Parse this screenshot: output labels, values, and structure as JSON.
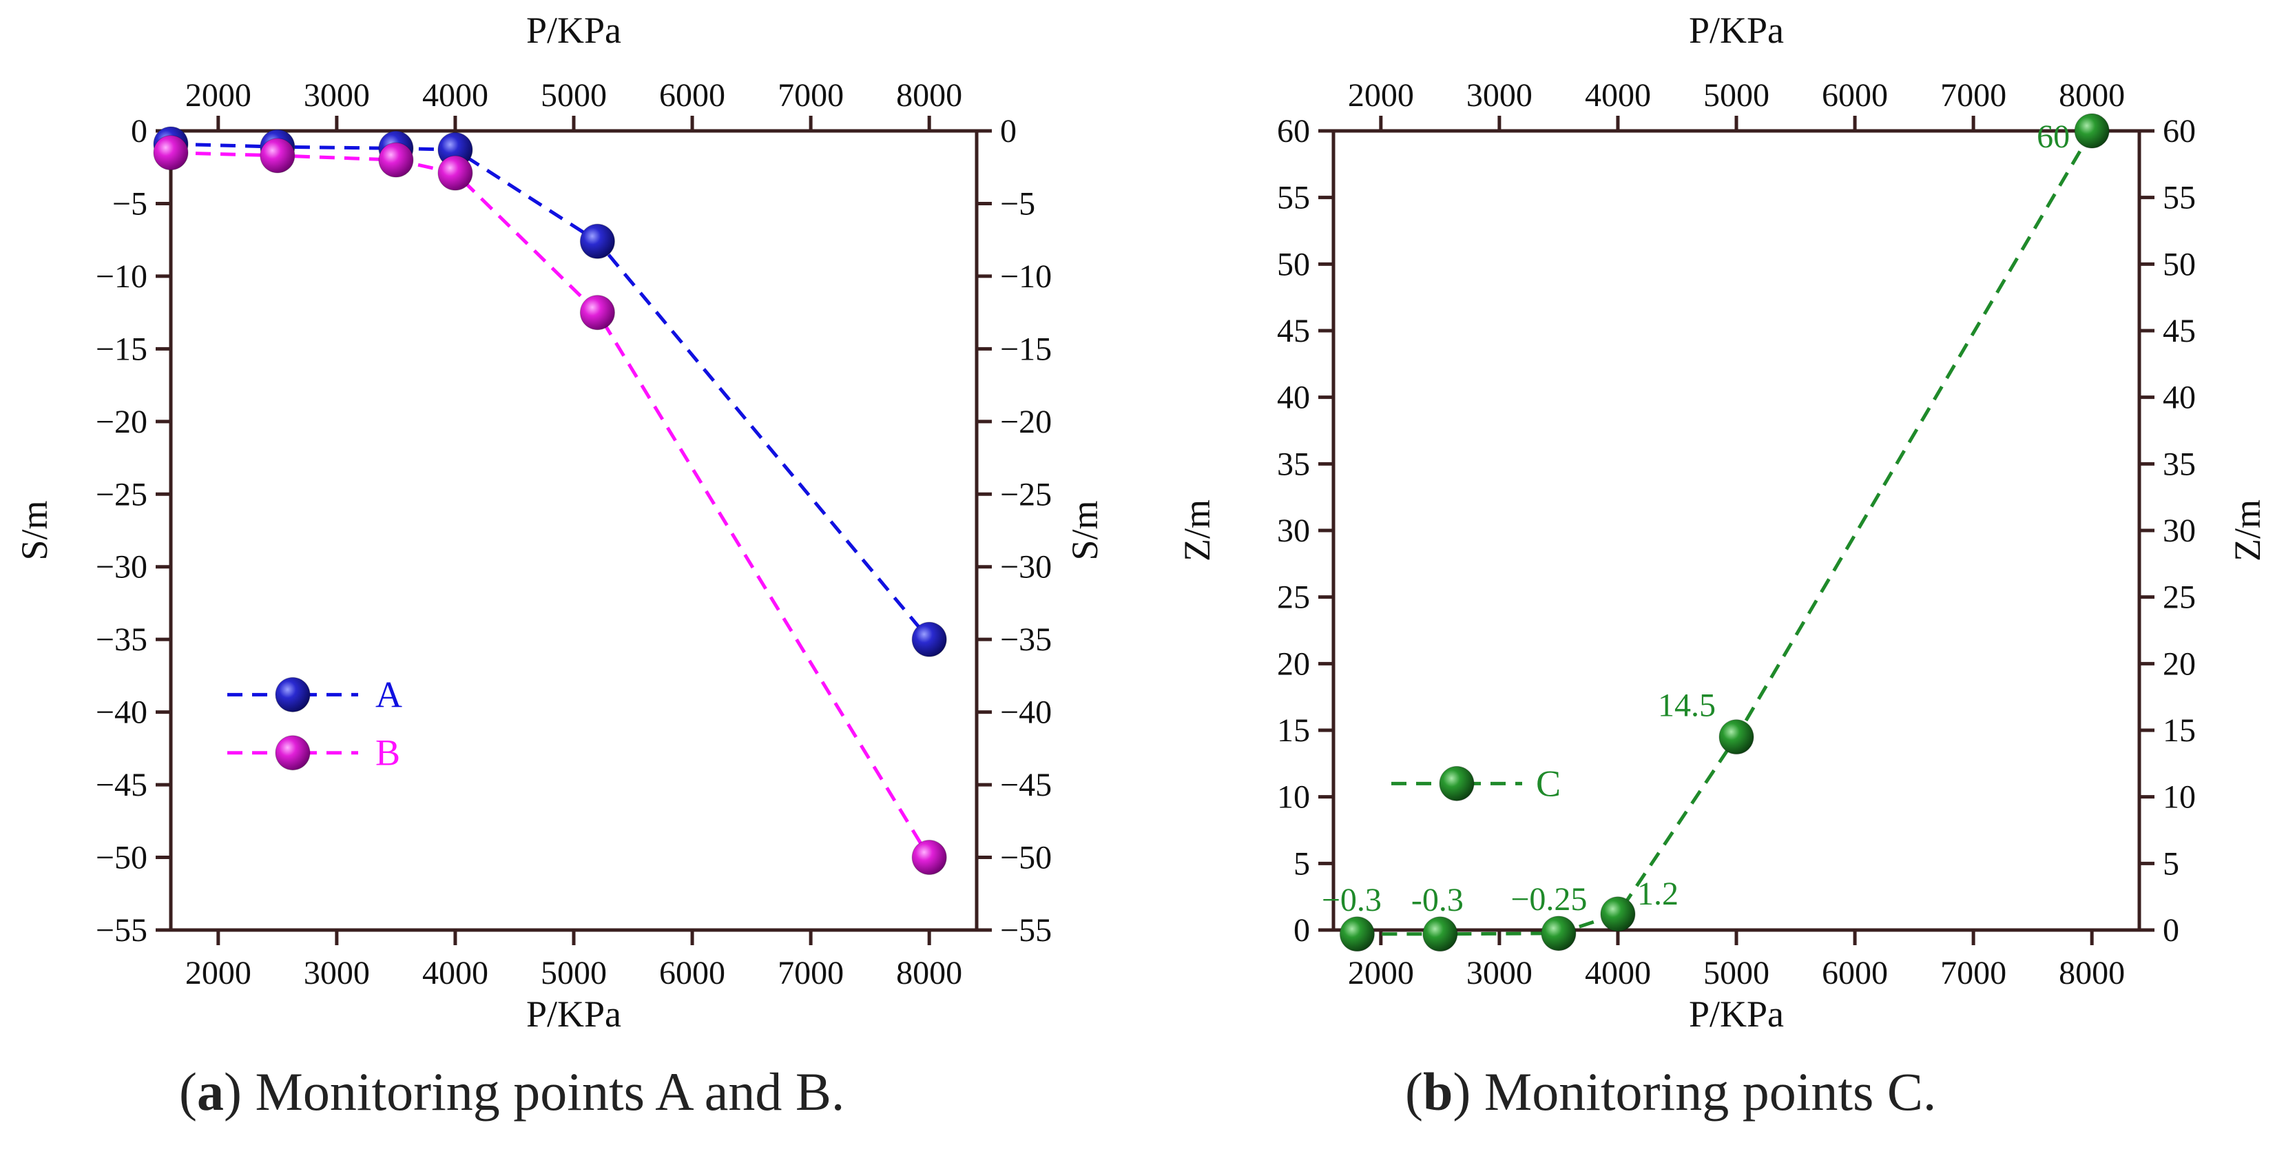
{
  "colors": {
    "axis": "#3a1f1f",
    "series_A": "#1010e0",
    "series_A_marker": "#1818b8",
    "series_B": "#ff10ff",
    "series_B_marker": "#e010d0",
    "series_C": "#1f8a2a",
    "series_C_marker": "#1f8a2a",
    "caption": "#222222"
  },
  "captions": {
    "a": {
      "open": "(",
      "letter": "a",
      "text": ") Monitoring points A and B."
    },
    "b": {
      "open": "(",
      "letter": "b",
      "text": ") Monitoring points C."
    }
  },
  "chart_data": [
    {
      "type": "line",
      "id": "a",
      "title": "",
      "xlabel": "P/KPa",
      "x2label": "P/KPa",
      "ylabel": "S/m",
      "y2label": "S/m",
      "xlim": [
        1600,
        8400
      ],
      "ylim": [
        -55,
        0
      ],
      "xticks": [
        2000,
        3000,
        4000,
        5000,
        6000,
        7000,
        8000
      ],
      "yticks": [
        0,
        -5,
        -10,
        -15,
        -20,
        -25,
        -30,
        -35,
        -40,
        -45,
        -50,
        -55
      ],
      "ytick_labels": [
        "0",
        "−5",
        "−10",
        "−15",
        "−20",
        "−25",
        "−30",
        "−35",
        "−40",
        "−45",
        "−50",
        "−55"
      ],
      "legend": {
        "position": "bottom-left",
        "entries": [
          "A",
          "B"
        ]
      },
      "series": [
        {
          "name": "A",
          "x": [
            1600,
            2500,
            3500,
            4000,
            5200,
            8000
          ],
          "y": [
            -0.9,
            -1.1,
            -1.2,
            -1.3,
            -7.6,
            -35
          ]
        },
        {
          "name": "B",
          "x": [
            1600,
            2500,
            3500,
            4000,
            5200,
            8000
          ],
          "y": [
            -1.5,
            -1.7,
            -2.0,
            -2.9,
            -12.5,
            -50
          ]
        }
      ]
    },
    {
      "type": "line",
      "id": "b",
      "title": "",
      "xlabel": "P/KPa",
      "x2label": "P/KPa",
      "ylabel": "Z/m",
      "y2label": "Z/m",
      "xlim": [
        1600,
        8400
      ],
      "ylim": [
        0,
        60
      ],
      "xticks": [
        2000,
        3000,
        4000,
        5000,
        6000,
        7000,
        8000
      ],
      "yticks": [
        0,
        5,
        10,
        15,
        20,
        25,
        30,
        35,
        40,
        45,
        50,
        55,
        60
      ],
      "ytick_labels": [
        "0",
        "5",
        "10",
        "15",
        "20",
        "25",
        "30",
        "35",
        "40",
        "45",
        "50",
        "55",
        "60"
      ],
      "legend": {
        "position": "bottom-left",
        "entries": [
          "C"
        ]
      },
      "series": [
        {
          "name": "C",
          "x": [
            1800,
            2500,
            3500,
            4000,
            5000,
            8000
          ],
          "y": [
            -0.3,
            -0.3,
            -0.25,
            1.2,
            14.5,
            60
          ],
          "labels": [
            "−0.3",
            "-0.3",
            "−0.25",
            "1.2",
            "14.5",
            "60"
          ]
        }
      ]
    }
  ]
}
